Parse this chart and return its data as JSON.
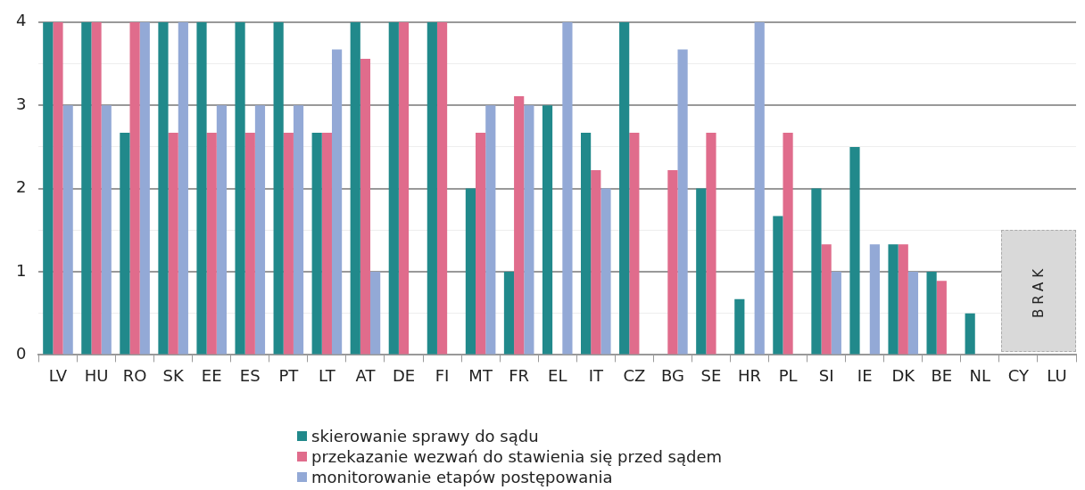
{
  "chart_data": {
    "type": "bar",
    "categories": [
      "LV",
      "HU",
      "RO",
      "SK",
      "EE",
      "ES",
      "PT",
      "LT",
      "AT",
      "DE",
      "FI",
      "MT",
      "FR",
      "EL",
      "IT",
      "CZ",
      "BG",
      "SE",
      "HR",
      "PL",
      "SI",
      "IE",
      "DK",
      "BE",
      "NL",
      "CY",
      "LU"
    ],
    "series": [
      {
        "name": "skierowanie sprawy do sądu",
        "color": "#21898b",
        "values": [
          4,
          4,
          2.67,
          4,
          4,
          4,
          4,
          2.67,
          4,
          4,
          4,
          2,
          1,
          3,
          2.67,
          4,
          null,
          2,
          0.67,
          1.67,
          2,
          2.5,
          1.33,
          1,
          0.5,
          null,
          null
        ]
      },
      {
        "name": "przekazanie wezwań do stawienia się przed sądem",
        "color": "#e06c8c",
        "values": [
          4,
          4,
          4,
          2.67,
          2.67,
          2.67,
          2.67,
          2.67,
          3.56,
          4,
          4,
          2.67,
          3.11,
          null,
          2.22,
          2.67,
          2.22,
          2.67,
          null,
          2.67,
          1.33,
          null,
          1.33,
          0.89,
          null,
          null,
          null
        ]
      },
      {
        "name": "monitorowanie etapów postępowania",
        "color": "#93a9d6",
        "values": [
          3,
          3,
          4,
          4,
          3,
          3,
          3,
          3.67,
          1,
          null,
          null,
          3,
          3,
          4,
          2,
          null,
          3.67,
          null,
          4,
          null,
          1,
          1.33,
          1,
          null,
          null,
          null,
          null
        ]
      }
    ],
    "ylim": [
      0,
      4
    ],
    "yticks": [
      0,
      {
        "value": 0.5,
        "label": null
      },
      1,
      {
        "value": 1.5,
        "label": null
      },
      2,
      {
        "value": 2.5,
        "label": null
      },
      3,
      {
        "value": 3.5,
        "label": null
      },
      4
    ],
    "grid": "y",
    "legend": "bottom",
    "annotations": [
      "BRAK"
    ]
  }
}
